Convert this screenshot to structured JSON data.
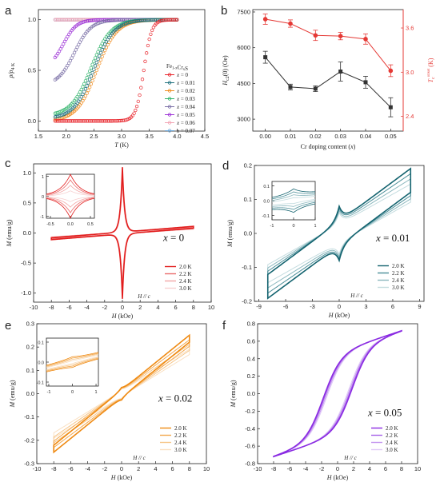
{
  "figure": {
    "panels": [
      "a",
      "b",
      "c",
      "d",
      "e",
      "f"
    ]
  },
  "chart_data": [
    {
      "panel": "a",
      "type": "line",
      "xlabel": "T (K)",
      "ylabel": "ρ/ρ4 K",
      "xlim": [
        1.5,
        4.5
      ],
      "ylim": [
        -0.1,
        1.1
      ],
      "xticks": [
        "1.5",
        "2.0",
        "2.5",
        "3.0",
        "3.5",
        "4.0",
        "4.5"
      ],
      "yticks": [
        "0.0",
        "0.5",
        "1.0"
      ],
      "legend_title": "Fe1-xCrxS",
      "legend_position": "right",
      "series": [
        {
          "name": "x = 0",
          "color": "#e8242b",
          "baseline": 0.0,
          "tmid": 3.4,
          "width": 0.07
        },
        {
          "name": "x = 0.01",
          "color": "#1d6f7c",
          "baseline": 0.02,
          "tmid": 2.5,
          "width": 0.18
        },
        {
          "name": "x = 0.02",
          "color": "#f08c1e",
          "baseline": 0.0,
          "tmid": 2.55,
          "width": 0.18
        },
        {
          "name": "x = 0.03",
          "color": "#2fb36a",
          "baseline": 0.05,
          "tmid": 2.45,
          "width": 0.18
        },
        {
          "name": "x = 0.04",
          "color": "#7a6fa6",
          "baseline": 0.35,
          "tmid": 2.15,
          "width": 0.15
        },
        {
          "name": "x = 0.05",
          "color": "#9b2fd6",
          "baseline": 0.52,
          "tmid": 1.95,
          "width": 0.12
        },
        {
          "name": "x = 0.06",
          "color": "#f2a3b3",
          "baseline": 1.0,
          "tmid": 1.5,
          "width": 0.1
        },
        {
          "name": "x = 0.07",
          "color": "#6da7d9",
          "baseline": 1.0,
          "tmid": 1.5,
          "width": 0.1
        }
      ],
      "x_range": [
        1.8,
        4.0
      ]
    },
    {
      "panel": "b",
      "type": "line",
      "xlabel": "Cr doping content (x)",
      "ylabel_left": "Hc2(0) (Oe)",
      "ylabel_right": "Tconset (K)",
      "categories": [
        "0.00",
        "0.01",
        "0.02",
        "0.03",
        "0.04",
        "0.05"
      ],
      "x": [
        0.0,
        0.01,
        0.02,
        0.03,
        0.04,
        0.05
      ],
      "xlim": [
        -0.005,
        0.055
      ],
      "ylim_left": [
        2500,
        7600
      ],
      "ylim_right": [
        2.2,
        3.85
      ],
      "yticks_left": [
        "3000",
        "4500",
        "6000",
        "7500"
      ],
      "yticks_right": [
        "2.4",
        "3.0",
        "3.6"
      ],
      "series": [
        {
          "name": "Hc2(0)",
          "axis": "left",
          "color": "#333333",
          "values": [
            5600,
            4350,
            4280,
            5000,
            4550,
            3500
          ],
          "errors": [
            250,
            120,
            120,
            400,
            250,
            400
          ]
        },
        {
          "name": "Tconset",
          "axis": "right",
          "color": "#e53935",
          "values": [
            3.72,
            3.66,
            3.5,
            3.49,
            3.45,
            3.02
          ],
          "errors": [
            0.07,
            0.05,
            0.07,
            0.05,
            0.07,
            0.08
          ]
        }
      ]
    },
    {
      "panel": "c",
      "type": "line",
      "xlabel": "H (kOe)",
      "ylabel": "M (emu/g)",
      "xlim": [
        -10,
        10
      ],
      "ylim": [
        -1.15,
        1.15
      ],
      "xticks": [
        "-10",
        "-8",
        "-6",
        "-4",
        "-2",
        "0",
        "2",
        "4",
        "6",
        "8",
        "10"
      ],
      "yticks": [
        "-1.0",
        "-0.5",
        "0.0",
        "0.5",
        "1.0"
      ],
      "annotation": "x = 0",
      "field_note": "H // c",
      "legend": [
        "2.0 K",
        "2.2 K",
        "2.4 K",
        "3.0 K"
      ],
      "colors": [
        "#e21c1c",
        "#ea6b6b",
        "#f2a6a6",
        "#f7d0d0"
      ],
      "loop": {
        "slope": 0.012,
        "width": 0.015,
        "peak": 1.08,
        "decay": 0.25
      },
      "inset": {
        "xlim": [
          -0.6,
          0.6
        ],
        "ylim": [
          -1.1,
          1.1
        ],
        "xticks": [
          "-0.5",
          "0.0",
          "0.5"
        ],
        "yticks": [
          "-1",
          "0",
          "1"
        ]
      }
    },
    {
      "panel": "d",
      "type": "line",
      "xlabel": "H (kOe)",
      "ylabel": "M (emu/g)",
      "xlim": [
        -9.5,
        9.5
      ],
      "ylim": [
        -0.2,
        0.2
      ],
      "xticks": [
        "-9",
        "-6",
        "-3",
        "0",
        "3",
        "6",
        "9"
      ],
      "yticks": [
        "-0.2",
        "-0.1",
        "0.0",
        "0.1",
        "0.2"
      ],
      "annotation": "x = 0.01",
      "field_note": "H // c",
      "legend": [
        "2.0 K",
        "2.2 K",
        "2.4 K",
        "3.0 K"
      ],
      "colors": [
        "#13636f",
        "#4a8e98",
        "#8cb8be",
        "#c4dcdf"
      ],
      "loop": {
        "slope": 0.0195,
        "width": 0.035,
        "peak": 0.045,
        "decay": 0.5
      },
      "inset": {
        "xlim": [
          -1,
          1
        ],
        "ylim": [
          -0.13,
          0.13
        ],
        "xticks": [
          "-1",
          "0",
          "1"
        ],
        "yticks": [
          "-0.1",
          "0.0",
          "0.1"
        ]
      }
    },
    {
      "panel": "e",
      "type": "line",
      "xlabel": "H (kOe)",
      "ylabel": "M (emu/g)",
      "xlim": [
        -10,
        10
      ],
      "ylim": [
        -0.3,
        0.3
      ],
      "xticks": [
        "-10",
        "-8",
        "-6",
        "-4",
        "-2",
        "0",
        "2",
        "4",
        "6",
        "8",
        "10"
      ],
      "yticks": [
        "-0.3",
        "-0.2",
        "-0.1",
        "0.0",
        "0.1",
        "0.2",
        "0.3"
      ],
      "annotation": "x = 0.02",
      "field_note": "H // c",
      "legend": [
        "2.0 K",
        "2.2 K",
        "2.4 K",
        "3.0 K"
      ],
      "colors": [
        "#ef8a12",
        "#f3a84e",
        "#f6c68a",
        "#fae0c2"
      ],
      "loop": {
        "slope": 0.0295,
        "width": 0.015,
        "peak": 0.012,
        "decay": 0.5
      },
      "inset": {
        "xlim": [
          -1.1,
          1.1
        ],
        "ylim": [
          -0.12,
          0.12
        ],
        "xticks": [
          "-1",
          "0",
          "1"
        ],
        "yticks": [
          "-0.1",
          "0.0",
          "0.1"
        ]
      }
    },
    {
      "panel": "f",
      "type": "line",
      "xlabel": "H (kOe)",
      "ylabel": "M (emu/g)",
      "xlim": [
        -10,
        10
      ],
      "ylim": [
        -0.8,
        0.8
      ],
      "xticks": [
        "-10",
        "-8",
        "-6",
        "-4",
        "-2",
        "0",
        "2",
        "4",
        "6",
        "8",
        "10"
      ],
      "yticks": [
        "-0.8",
        "-0.6",
        "-0.4",
        "-0.2",
        "0.0",
        "0.2",
        "0.4",
        "0.6",
        "0.8"
      ],
      "annotation": "x = 0.05",
      "field_note": "H // c",
      "legend": [
        "2.0 K",
        "2.2 K",
        "2.4 K",
        "3.0 K"
      ],
      "colors": [
        "#8a2be2",
        "#a661e8",
        "#c497ef",
        "#e0cbf7"
      ],
      "loop": {
        "ms": 0.72,
        "hc": 1.8,
        "w": 2.2,
        "lin": 0.03
      }
    }
  ]
}
